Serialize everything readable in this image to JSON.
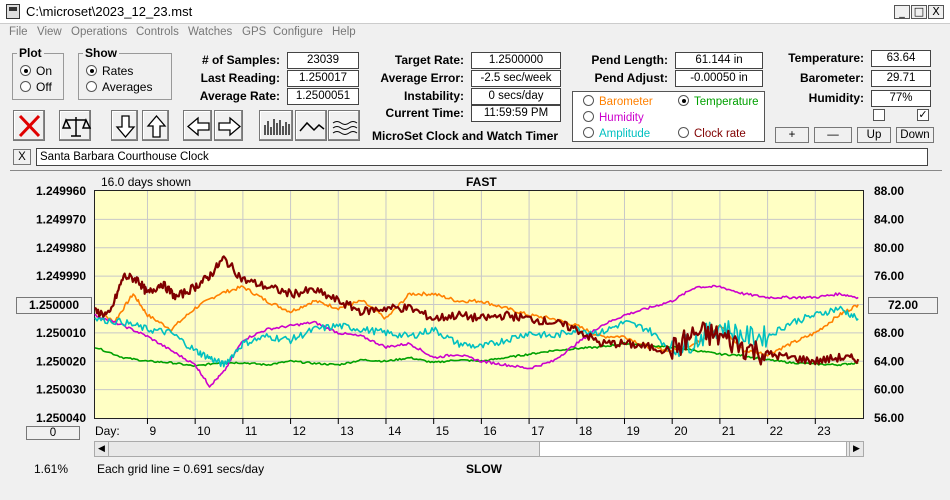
{
  "window": {
    "title": "C:\\microset\\2023_12_23.mst",
    "min": "_",
    "max": "□",
    "close": "X"
  },
  "menu": [
    "File",
    "View",
    "Operations",
    "Controls",
    "Watches",
    "GPS",
    "Configure",
    "Help"
  ],
  "plot_group": {
    "legend": "Plot",
    "on": "On",
    "off": "Off"
  },
  "show_group": {
    "legend": "Show",
    "rates": "Rates",
    "averages": "Averages"
  },
  "stats": {
    "samples_label": "# of Samples:",
    "samples": "23039",
    "last_label": "Last Reading:",
    "last": "1.250017",
    "avg_rate_label": "Average Rate:",
    "avg_rate": "1.2500051"
  },
  "rates": {
    "target_label": "Target Rate:",
    "target": "1.2500000",
    "avg_err_label": "Average Error:",
    "avg_err": "-2.5 sec/week",
    "instab_label": "Instability:",
    "instab": "0 secs/day",
    "time_label": "Current Time:",
    "time": "11:59:59 PM",
    "subtitle": "MicroSet Clock and Watch Timer"
  },
  "pend": {
    "length_label": "Pend Length:",
    "length": "61.144 in",
    "adjust_label": "Pend Adjust:",
    "adjust": "-0.00050 in"
  },
  "env": {
    "temp_label": "Temperature:",
    "temp": "63.64",
    "baro_label": "Barometer:",
    "baro": "29.71",
    "hum_label": "Humidity:",
    "hum": "77%"
  },
  "series_select": {
    "barometer": "Barometer",
    "temperature": "Temperature",
    "humidity": "Humidity",
    "amplitude": "Amplitude",
    "clock_rate": "Clock rate"
  },
  "adjust_buttons": {
    "plus": "+",
    "minus": "—",
    "up": "Up",
    "down": "Down"
  },
  "clock_name": "Santa Barbara Courthouse Clock",
  "clear_btn": "X",
  "colors": {
    "barometer": "#ff8000",
    "temperature": "#00a000",
    "humidity": "#cc00cc",
    "amplitude": "#00c0c0",
    "clock_rate": "#800000",
    "plot_bg": "#ffffc4"
  },
  "graph": {
    "days_shown": "16.0 days shown",
    "fast": "FAST",
    "slow": "SLOW",
    "grid_note": "Each grid line = 0.691 secs/day",
    "pct": "1.61%",
    "left_marker": "1.250000",
    "right_marker": "72.00",
    "zero_btn": "0",
    "day_label": "Day:"
  },
  "chart_data": {
    "type": "line",
    "xlabel": "Day:",
    "x_ticks": [
      "9",
      "10",
      "11",
      "12",
      "13",
      "14",
      "15",
      "16",
      "17",
      "18",
      "19",
      "20",
      "21",
      "22",
      "23"
    ],
    "y_left_ticks": [
      "1.249960",
      "1.249970",
      "1.249980",
      "1.249990",
      "1.250000",
      "1.250010",
      "1.250020",
      "1.250030",
      "1.250040"
    ],
    "y_right_ticks": [
      "88.00",
      "84.00",
      "80.00",
      "76.00",
      "72.00",
      "68.00",
      "64.00",
      "60.00",
      "56.00"
    ],
    "ylim_left": [
      1.25004,
      1.24996
    ],
    "ylim_right": [
      56,
      88
    ],
    "xlim": [
      7.9,
      24
    ],
    "grid": true,
    "series": [
      {
        "name": "Barometer",
        "color": "#ff8000",
        "x": [
          7.9,
          8.3,
          8.7,
          9.0,
          9.5,
          10.0,
          10.5,
          11.0,
          11.5,
          12.0,
          12.5,
          13.0,
          13.5,
          14.0,
          14.5,
          15.0,
          15.5,
          16.0,
          16.5,
          17.0,
          17.5,
          18.0,
          18.5,
          19.0,
          19.5,
          20.0,
          20.5,
          21.0,
          21.5,
          22.0,
          22.5,
          23.0,
          23.5,
          23.9
        ],
        "y": [
          71.5,
          69.5,
          73.5,
          70.5,
          68.5,
          71.5,
          73.5,
          74.5,
          72.5,
          71.0,
          72.5,
          71.5,
          72.5,
          70.0,
          73.5,
          73.5,
          72.5,
          72.5,
          71.5,
          70.5,
          70.0,
          69.0,
          67.5,
          67.5,
          66.0,
          65.5,
          66.5,
          69.0,
          65.5,
          65.0,
          66.5,
          68.0,
          70.5,
          72.0
        ]
      },
      {
        "name": "Temperature",
        "color": "#00a000",
        "x": [
          7.9,
          8.5,
          9.0,
          9.5,
          10.0,
          10.5,
          11.0,
          11.5,
          12.0,
          12.5,
          13.0,
          13.5,
          14.0,
          14.5,
          15.0,
          15.5,
          16.0,
          16.5,
          17.0,
          17.5,
          18.0,
          18.5,
          19.0,
          19.5,
          20.0,
          20.5,
          21.0,
          21.5,
          22.0,
          22.5,
          23.0,
          23.5,
          23.9
        ],
        "y": [
          66.0,
          64.5,
          64.0,
          63.8,
          63.3,
          63.8,
          63.8,
          63.5,
          64.0,
          63.7,
          63.5,
          64.2,
          64.0,
          64.5,
          63.8,
          64.2,
          64.0,
          64.5,
          65.0,
          65.5,
          65.8,
          66.0,
          66.5,
          66.2,
          66.0,
          65.5,
          65.0,
          64.8,
          64.2,
          63.8,
          63.6,
          63.5,
          63.8
        ]
      },
      {
        "name": "Humidity",
        "color": "#cc00cc",
        "x": [
          7.9,
          8.5,
          9.0,
          9.5,
          10.0,
          10.3,
          10.6,
          11.0,
          11.5,
          12.0,
          12.5,
          13.0,
          13.5,
          14.0,
          14.5,
          15.0,
          15.5,
          16.0,
          16.5,
          17.0,
          17.5,
          18.0,
          18.5,
          19.0,
          19.5,
          20.0,
          20.5,
          21.0,
          21.5,
          22.0,
          22.5,
          23.0,
          23.5,
          23.9
        ],
        "y": [
          70.5,
          69.0,
          67.5,
          65.5,
          63.5,
          60.5,
          62.5,
          67.0,
          68.5,
          69.0,
          69.5,
          68.0,
          67.5,
          66.0,
          66.5,
          64.5,
          65.0,
          64.0,
          63.5,
          63.0,
          64.0,
          66.5,
          69.0,
          70.5,
          71.5,
          72.5,
          74.5,
          74.5,
          73.5,
          73.0,
          73.0,
          73.0,
          73.5,
          73.0
        ]
      },
      {
        "name": "Amplitude",
        "color": "#00c0c0",
        "x": [
          7.9,
          8.5,
          9.0,
          9.5,
          10.0,
          10.3,
          10.6,
          11.0,
          11.5,
          12.0,
          12.5,
          13.0,
          13.5,
          14.0,
          14.5,
          15.0,
          15.5,
          16.0,
          16.5,
          17.0,
          17.5,
          18.0,
          18.5,
          19.0,
          19.5,
          20.0,
          20.5,
          21.0,
          21.5,
          22.0,
          22.5,
          23.0,
          23.5,
          23.9
        ],
        "y": [
          70.0,
          69.5,
          68.5,
          68.0,
          65.5,
          64.5,
          63.5,
          66.5,
          67.5,
          67.0,
          68.5,
          69.0,
          68.5,
          68.0,
          67.5,
          68.5,
          66.5,
          66.0,
          67.0,
          68.0,
          67.5,
          68.5,
          68.0,
          69.5,
          68.5,
          65.5,
          67.0,
          69.0,
          67.5,
          67.5,
          69.5,
          70.5,
          71.5,
          70.0
        ]
      },
      {
        "name": "Clock rate",
        "color": "#800000",
        "x": [
          7.9,
          8.2,
          8.5,
          8.8,
          9.0,
          9.3,
          9.6,
          10.0,
          10.3,
          10.6,
          11.0,
          11.5,
          12.0,
          12.5,
          13.0,
          13.5,
          14.0,
          14.5,
          15.0,
          15.5,
          16.0,
          16.5,
          17.0,
          17.5,
          18.0,
          18.5,
          19.0,
          19.5,
          20.0,
          20.5,
          21.0,
          21.5,
          22.0,
          22.5,
          23.0,
          23.5,
          23.9
        ],
        "y": [
          71.0,
          70.5,
          76.0,
          75.5,
          73.5,
          75.0,
          73.0,
          74.5,
          76.0,
          78.5,
          75.5,
          74.5,
          73.5,
          74.0,
          72.5,
          71.0,
          71.5,
          71.5,
          70.0,
          70.5,
          70.0,
          70.5,
          70.0,
          69.5,
          68.5,
          66.5,
          66.5,
          66.0,
          65.5,
          68.0,
          67.5,
          66.0,
          65.0,
          64.5,
          64.0,
          64.5,
          64.3
        ]
      }
    ]
  }
}
